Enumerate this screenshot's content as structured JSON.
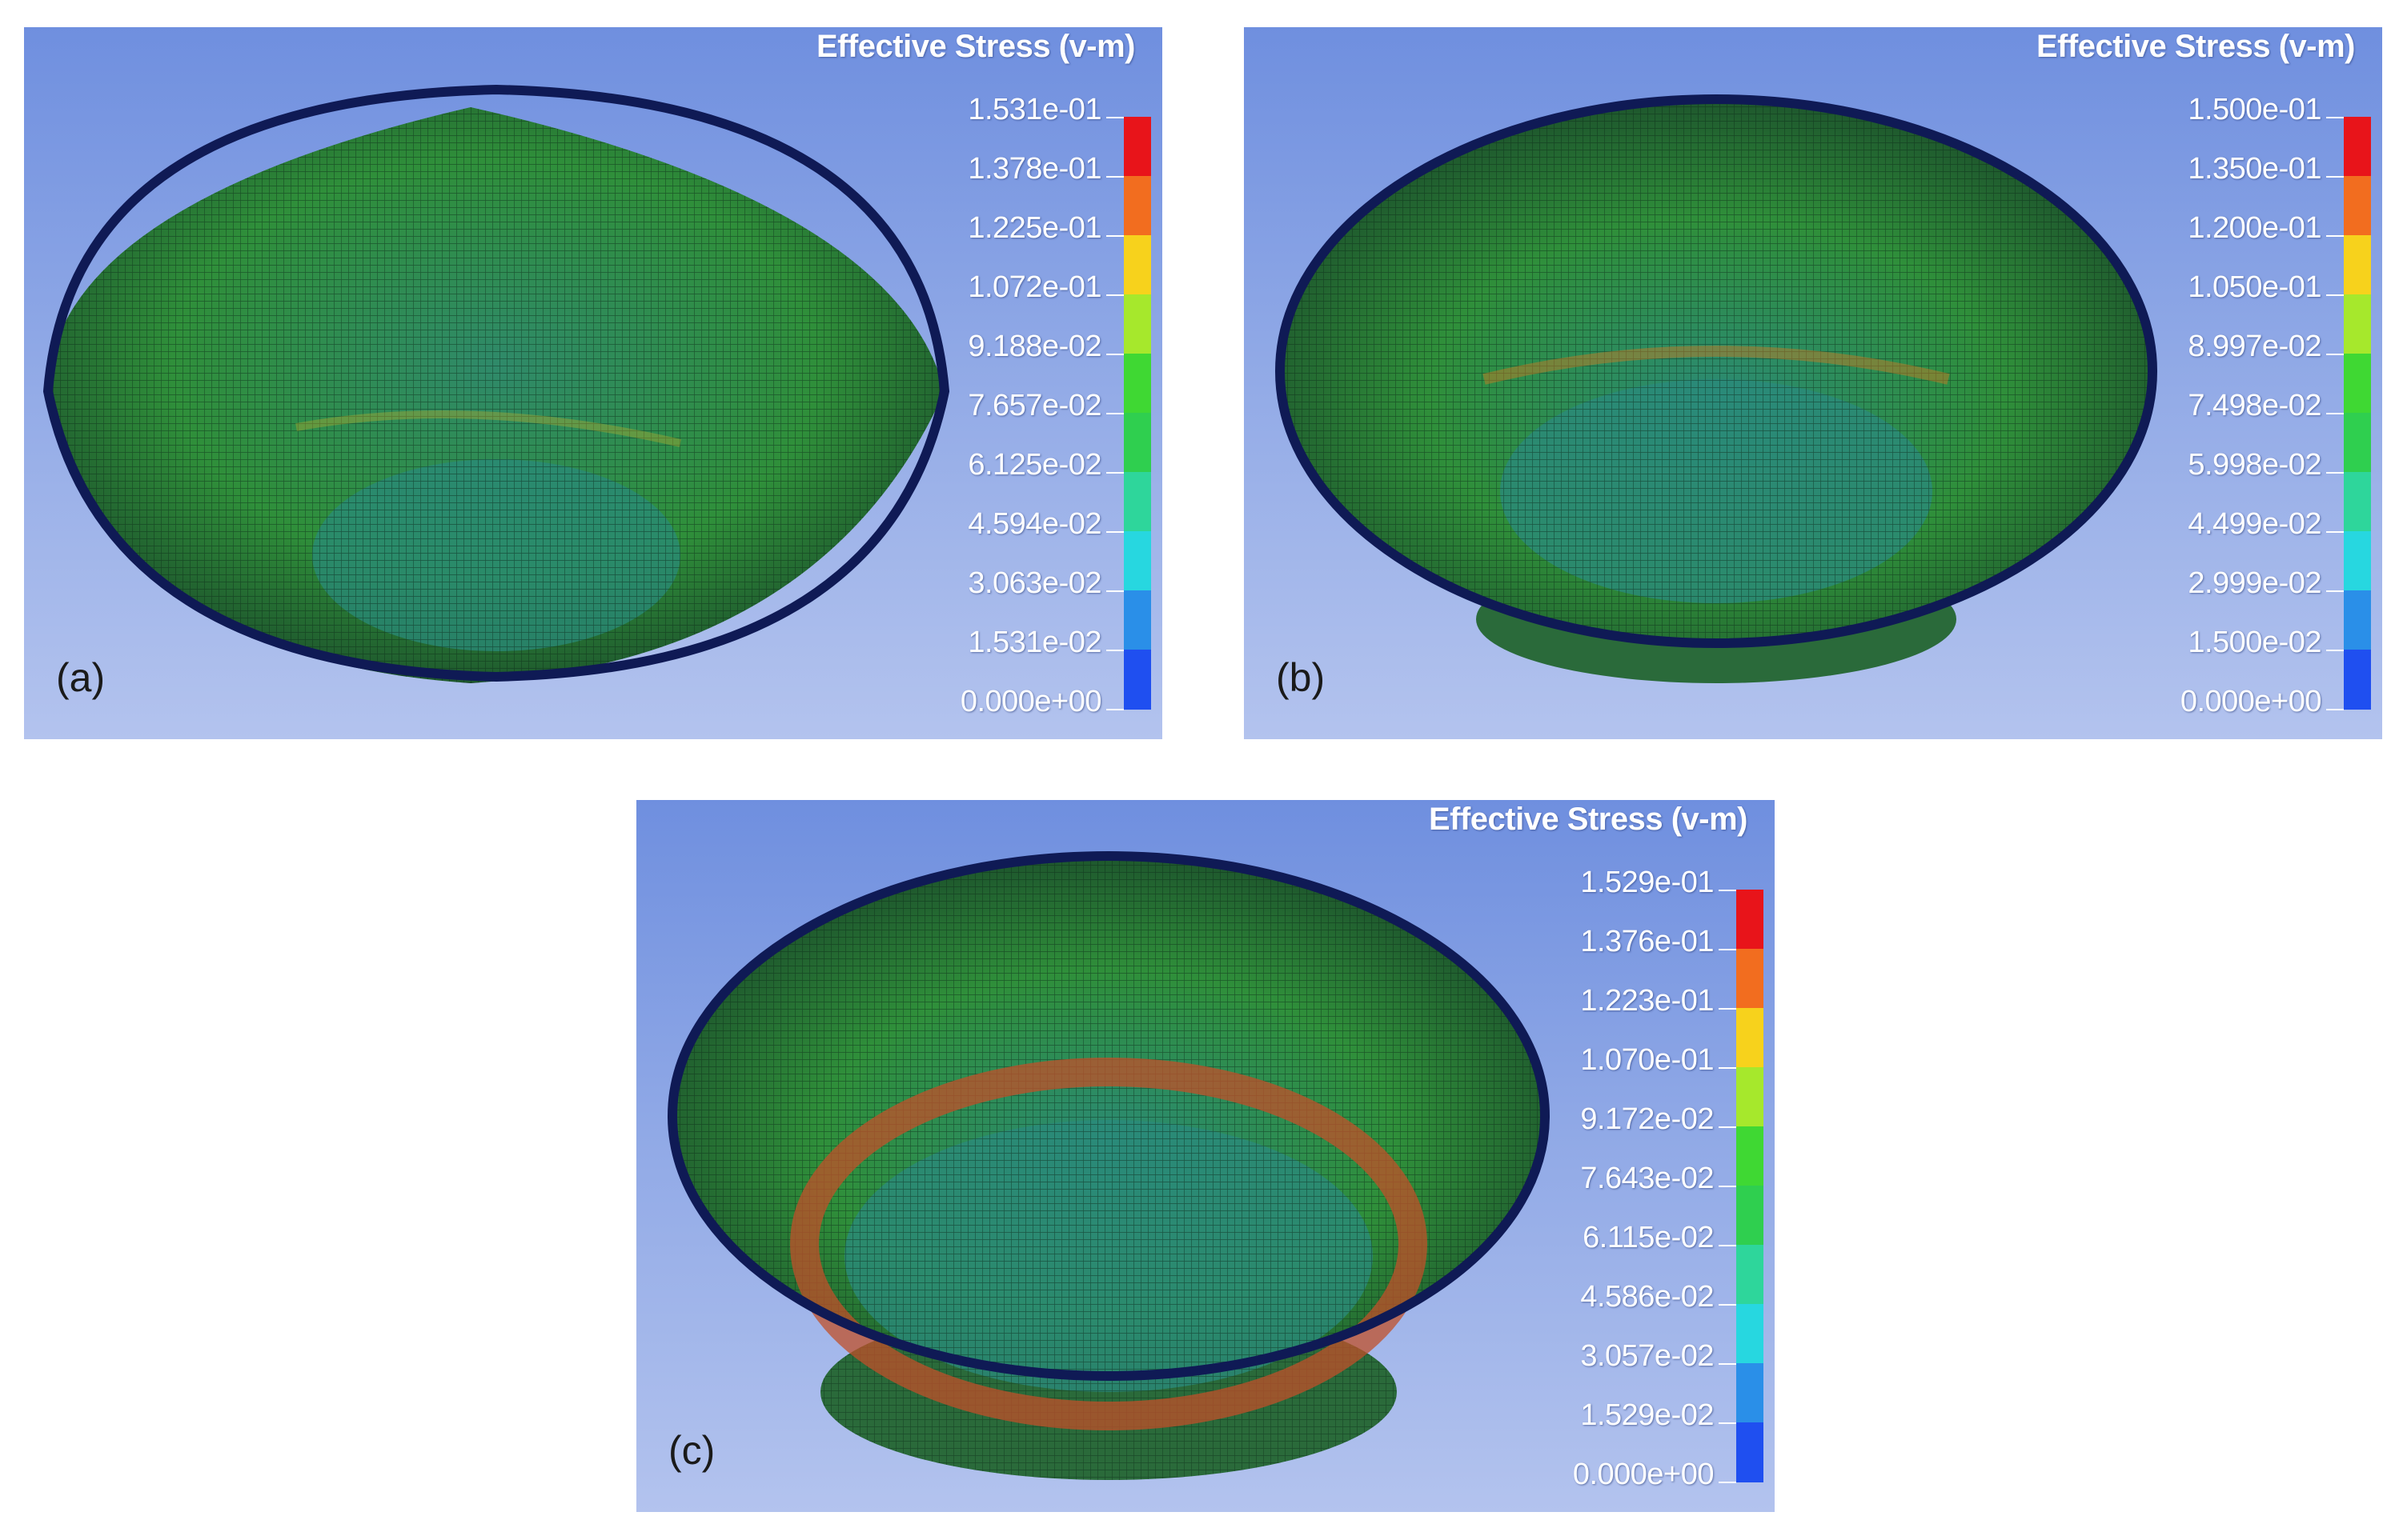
{
  "panels": [
    {
      "label": "(a)",
      "legend_title": "Effective Stress (v-m)",
      "ticks": [
        "1.531e-01",
        "1.378e-01",
        "1.225e-01",
        "1.072e-01",
        "9.188e-02",
        "7.657e-02",
        "6.125e-02",
        "4.594e-02",
        "3.063e-02",
        "1.531e-02",
        "0.000e+00"
      ]
    },
    {
      "label": "(b)",
      "legend_title": "Effective Stress (v-m)",
      "ticks": [
        "1.500e-01",
        "1.350e-01",
        "1.200e-01",
        "1.050e-01",
        "8.997e-02",
        "7.498e-02",
        "5.998e-02",
        "4.499e-02",
        "2.999e-02",
        "1.500e-02",
        "0.000e+00"
      ]
    },
    {
      "label": "(c)",
      "legend_title": "Effective Stress (v-m)",
      "ticks": [
        "1.529e-01",
        "1.376e-01",
        "1.223e-01",
        "1.070e-01",
        "9.172e-02",
        "7.643e-02",
        "6.115e-02",
        "4.586e-02",
        "3.057e-02",
        "1.529e-02",
        "0.000e+00"
      ]
    }
  ],
  "colorbar_colors": [
    "#e8141a",
    "#f26d1f",
    "#f7d21c",
    "#a6e82c",
    "#3fd833",
    "#2fcf4f",
    "#2ed69b",
    "#27d7e0",
    "#2a8fe8",
    "#1f4ff0"
  ],
  "colors": {
    "background_top": "#6f8fdf",
    "background_bottom": "#b3c3ee",
    "mesh": "#1f7a3a",
    "rim": "#0f1a55"
  }
}
